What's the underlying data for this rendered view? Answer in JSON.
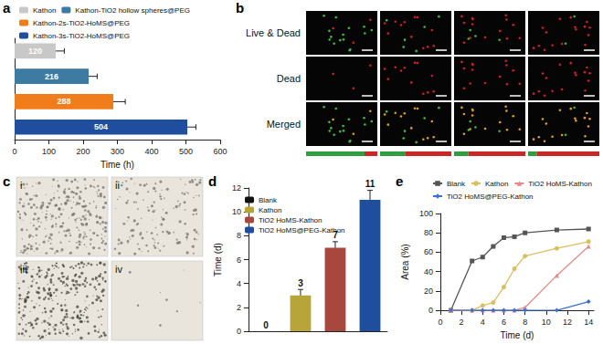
{
  "chart_data": [
    {
      "panel_label": "a",
      "type": "bar",
      "orientation": "horizontal",
      "categories": [
        "Kathon",
        "Kathon-TiO2 hollow spheres@PEG",
        "Kathon-2s-TiO2-HoMS@PEG",
        "Kathon-3s-TiO2-HoMS@PEG"
      ],
      "values": [
        120,
        216,
        288,
        504
      ],
      "errors": [
        25,
        25,
        35,
        25
      ],
      "colors": [
        "#c8c8c8",
        "#3d7ba3",
        "#f07d1a",
        "#1f4e9e"
      ],
      "x_label": "Time (h)",
      "xlim": [
        0,
        600
      ],
      "xticks": [
        0,
        100,
        200,
        300,
        400,
        500,
        600
      ],
      "tick_labels": "x",
      "data_labels": true,
      "legend": "top",
      "grid": false
    },
    {
      "panel_label": "d",
      "type": "bar",
      "categories": [
        "Blank",
        "Kathon",
        "TiO2 HoMS-Kathon",
        "TiO2 HoMS@PEG-Kathon"
      ],
      "values": [
        0,
        3,
        7,
        11
      ],
      "errors": [
        0,
        0.5,
        0.5,
        0.8
      ],
      "colors": [
        "#111111",
        "#b8a53a",
        "#a8473d",
        "#1f4e9e"
      ],
      "y_label": "Time (d)",
      "ylim": [
        0,
        12
      ],
      "yticks": [
        0,
        2,
        4,
        6,
        8,
        10,
        12
      ],
      "tick_labels": "y",
      "data_labels": true,
      "legend": "upper left",
      "grid": false
    },
    {
      "panel_label": "e",
      "type": "line",
      "x": [
        1,
        3,
        4,
        5,
        6,
        7,
        8,
        11,
        14
      ],
      "series": [
        {
          "name": "Blank",
          "color": "#555555",
          "marker": "square",
          "values": [
            0,
            51,
            55,
            66,
            75,
            76,
            80,
            83,
            84
          ]
        },
        {
          "name": "Kathon",
          "color": "#d8c060",
          "marker": "circle",
          "values": [
            0,
            0,
            5,
            8,
            24,
            43,
            56,
            64,
            71
          ]
        },
        {
          "name": "TiO2 HoMS-Kathon",
          "color": "#e48a8a",
          "marker": "triangle",
          "values": [
            0,
            0,
            0,
            0,
            0,
            0,
            3,
            36,
            66
          ]
        },
        {
          "name": "TiO2 HoMS@PEG-Kathon",
          "color": "#3b6fd0",
          "marker": "diamond",
          "values": [
            0,
            0,
            0,
            0,
            0,
            0,
            0,
            0,
            9
          ]
        }
      ],
      "x_label": "Time (d)",
      "y_label": "Area (%)",
      "xlim": [
        0,
        14.5
      ],
      "xticks": [
        0,
        2,
        4,
        6,
        8,
        10,
        12,
        14
      ],
      "ylim": [
        0,
        100
      ],
      "yticks": [
        0,
        20,
        40,
        60,
        80,
        100
      ],
      "legend": "top",
      "grid": false
    }
  ],
  "image_panels": {
    "b": {
      "panel_label": "b",
      "row_labels": [
        "Live & Dead",
        "Dead",
        "Merged"
      ],
      "live_fraction": [
        0.82,
        0.35,
        0.2,
        0.12
      ]
    },
    "c": {
      "panel_label": "c",
      "photo_labels": [
        "i",
        "ii",
        "iii",
        "iv"
      ]
    }
  }
}
